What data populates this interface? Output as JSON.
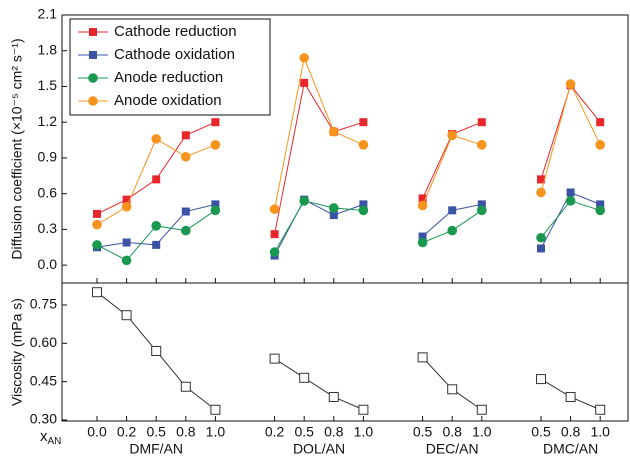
{
  "chart_data": [
    {
      "type": "line",
      "ylabel": "Diffusion coefficient (×10⁻⁵ cm² s⁻¹)",
      "ylim": [
        -0.15,
        2.1
      ],
      "yticks": [
        {
          "value": 0,
          "label": "0.0"
        },
        0.3,
        0.6,
        0.9,
        1.2,
        1.5,
        1.8,
        2.1
      ],
      "legend": "upper left",
      "series": [
        {
          "name": "Cathode reduction",
          "color": "#e8262b",
          "marker": "square",
          "values": [
            0.43,
            0.55,
            0.72,
            1.09,
            1.2,
            null,
            0.26,
            1.53,
            1.12,
            1.2,
            null,
            0.56,
            1.1,
            1.2,
            null,
            0.72,
            1.51,
            1.2
          ]
        },
        {
          "name": "Cathode oxidation",
          "color": "#3a53a4",
          "marker": "square",
          "values": [
            0.15,
            0.19,
            0.17,
            0.45,
            0.51,
            null,
            0.08,
            0.55,
            0.42,
            0.51,
            null,
            0.24,
            0.46,
            0.51,
            null,
            0.14,
            0.61,
            0.51
          ]
        },
        {
          "name": "Anode reduction",
          "color": "#1a9850",
          "marker": "circle",
          "values": [
            0.17,
            0.04,
            0.33,
            0.29,
            0.46,
            null,
            0.11,
            0.54,
            0.48,
            0.46,
            null,
            0.19,
            0.29,
            0.46,
            null,
            0.23,
            0.54,
            0.46
          ]
        },
        {
          "name": "Anode oxidation",
          "color": "#f7941d",
          "marker": "circle",
          "values": [
            0.34,
            0.49,
            1.06,
            0.91,
            1.01,
            null,
            0.47,
            1.74,
            1.12,
            1.01,
            null,
            0.5,
            1.09,
            1.01,
            null,
            0.61,
            1.52,
            1.01
          ]
        }
      ]
    },
    {
      "type": "line",
      "ylabel": "Viscosity (mPa s)",
      "ylim": [
        0.296,
        0.836
      ],
      "yticks": [
        {
          "value": 0.3,
          "label": "0.30"
        },
        0.45,
        {
          "value": 0.6,
          "label": "0.60"
        },
        0.75
      ],
      "xlabel": "x",
      "xlabel_subscript": "AN",
      "categories": [
        "0.0",
        "0.2",
        "0.5",
        "0.8",
        "1.0",
        null,
        "0.2",
        "0.5",
        "0.8",
        "1.0",
        null,
        "0.5",
        "0.8",
        "1.0",
        null,
        "0.5",
        "0.8",
        "1.0"
      ],
      "groups": [
        "DMF/AN",
        "DOL/AN",
        "DEC/AN",
        "DMC/AN"
      ],
      "series": [
        {
          "color": "#333333",
          "marker": "open-square",
          "values": [
            0.8,
            0.71,
            0.57,
            0.43,
            0.34,
            null,
            0.54,
            0.465,
            0.39,
            0.34,
            null,
            0.545,
            0.42,
            0.34,
            null,
            0.46,
            0.39,
            0.34
          ]
        }
      ]
    }
  ]
}
